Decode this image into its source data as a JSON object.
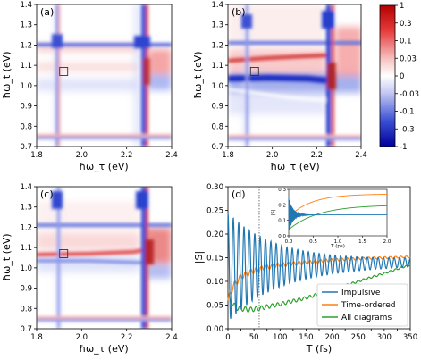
{
  "colors": {
    "red": "#d7191c",
    "blue": "#1d3bbd",
    "impulsive": "#1f77b4",
    "time_ordered": "#ff7f0e",
    "all_diagrams": "#2ca02c"
  },
  "chart_data": [
    {
      "type": "heatmap",
      "panel": "(a)",
      "xlabel": "ħω_τ (eV)",
      "ylabel": "ħω_t (eV)",
      "xlim": [
        1.8,
        2.4
      ],
      "ylim": [
        0.7,
        1.4
      ],
      "xticks": [
        "1.8",
        "2.0",
        "2.2",
        "2.4"
      ],
      "yticks": [
        "0.7",
        "0.8",
        "0.9",
        "1.0",
        "1.1",
        "1.2",
        "1.3",
        "1.4"
      ],
      "marker_box": [
        1.92,
        1.07
      ]
    },
    {
      "type": "heatmap",
      "panel": "(b)",
      "xlabel": "ħω_τ (eV)",
      "ylabel": "ħω_t (eV)",
      "xlim": [
        1.8,
        2.4
      ],
      "ylim": [
        0.7,
        1.4
      ],
      "xticks": [
        "1.8",
        "2.0",
        "2.2",
        "2.4"
      ],
      "yticks": [
        "0.7",
        "0.8",
        "0.9",
        "1.0",
        "1.1",
        "1.2",
        "1.3",
        "1.4"
      ],
      "marker_box": [
        1.92,
        1.07
      ],
      "colorbar_ticks": [
        "1",
        "0.3",
        "0.1",
        "0.03",
        "0",
        "-0.03",
        "-0.1",
        "-0.3",
        "-1"
      ]
    },
    {
      "type": "heatmap",
      "panel": "(c)",
      "xlabel": "ħω_τ (eV)",
      "ylabel": "ħω_t (eV)",
      "xlim": [
        1.8,
        2.4
      ],
      "ylim": [
        0.7,
        1.4
      ],
      "xticks": [
        "1.8",
        "2.0",
        "2.2",
        "2.4"
      ],
      "yticks": [
        "0.7",
        "0.8",
        "0.9",
        "1.0",
        "1.1",
        "1.2",
        "1.3",
        "1.4"
      ],
      "marker_box": [
        1.92,
        1.07
      ]
    },
    {
      "type": "line",
      "panel": "(d)",
      "xlabel": "T (fs)",
      "ylabel": "|S|",
      "xlim": [
        0,
        350
      ],
      "ylim": [
        0,
        0.3
      ],
      "xticks": [
        "0",
        "25",
        "50",
        "75",
        "100",
        "125",
        "150",
        "175",
        "200",
        "225",
        "250",
        "275",
        "300",
        "325",
        "350"
      ],
      "yticks": [
        "0.00",
        "0.05",
        "0.10",
        "0.15",
        "0.20",
        "0.25",
        "0.30"
      ],
      "vline_x": 60,
      "legend_position": "bottom-right",
      "series": [
        {
          "name": "Impulsive",
          "mean_start": 0.13,
          "mean_end": 0.14,
          "amp_start": 0.115,
          "amp_end": 0.007,
          "decay_fs": 95,
          "period_fs": 10.3
        },
        {
          "name": "Time-ordered",
          "points": [
            [
              0,
              0.06
            ],
            [
              10,
              0.09
            ],
            [
              25,
              0.11
            ],
            [
              50,
              0.123
            ],
            [
              75,
              0.13
            ],
            [
              100,
              0.135
            ],
            [
              150,
              0.14
            ],
            [
              200,
              0.145
            ],
            [
              250,
              0.148
            ],
            [
              300,
              0.15
            ],
            [
              350,
              0.152
            ]
          ],
          "ripple": 0.007
        },
        {
          "name": "All diagrams",
          "points": [
            [
              0,
              0.065
            ],
            [
              15,
              0.045
            ],
            [
              40,
              0.04
            ],
            [
              60,
              0.043
            ],
            [
              100,
              0.052
            ],
            [
              150,
              0.065
            ],
            [
              200,
              0.082
            ],
            [
              250,
              0.1
            ],
            [
              300,
              0.117
            ],
            [
              350,
              0.135
            ]
          ],
          "ripple": 0.006
        }
      ],
      "inset": {
        "xlabel": "T (ps)",
        "ylabel": "|S|",
        "xlim": [
          0,
          2
        ],
        "ylim": [
          0,
          0.3
        ],
        "xticks": [
          "0.0",
          "0.5",
          "1.0",
          "1.5",
          "2.0"
        ],
        "yticks": [
          "0.0",
          "0.1",
          "0.2",
          "0.3"
        ]
      }
    }
  ]
}
